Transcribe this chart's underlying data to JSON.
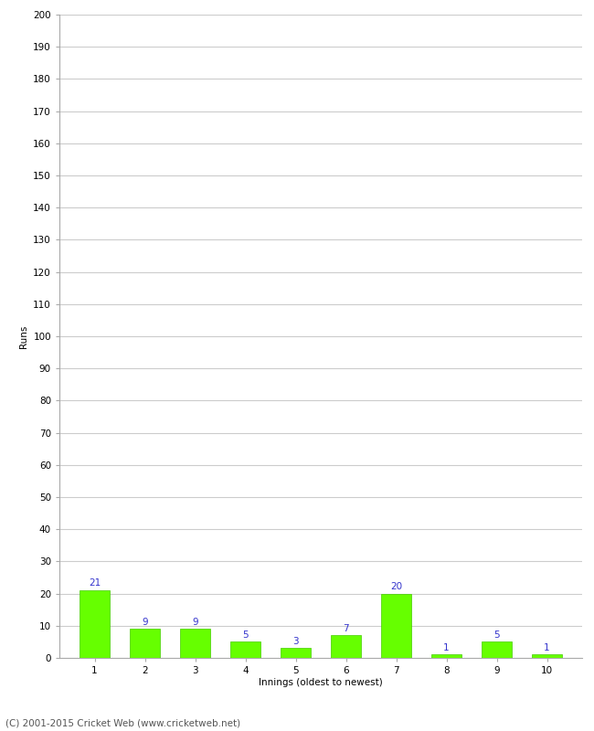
{
  "categories": [
    "1",
    "2",
    "3",
    "4",
    "5",
    "6",
    "7",
    "8",
    "9",
    "10"
  ],
  "values": [
    21,
    9,
    9,
    5,
    3,
    7,
    20,
    1,
    5,
    1
  ],
  "bar_color": "#66ff00",
  "bar_edge_color": "#44cc00",
  "label_color": "#3333cc",
  "ylabel": "Runs",
  "xlabel": "Innings (oldest to newest)",
  "ylim": [
    0,
    200
  ],
  "yticks": [
    0,
    10,
    20,
    30,
    40,
    50,
    60,
    70,
    80,
    90,
    100,
    110,
    120,
    130,
    140,
    150,
    160,
    170,
    180,
    190,
    200
  ],
  "footer": "(C) 2001-2015 Cricket Web (www.cricketweb.net)",
  "background_color": "#ffffff",
  "grid_color": "#cccccc",
  "label_fontsize": 7.5,
  "axis_label_fontsize": 7.5,
  "tick_fontsize": 7.5,
  "footer_fontsize": 7.5
}
